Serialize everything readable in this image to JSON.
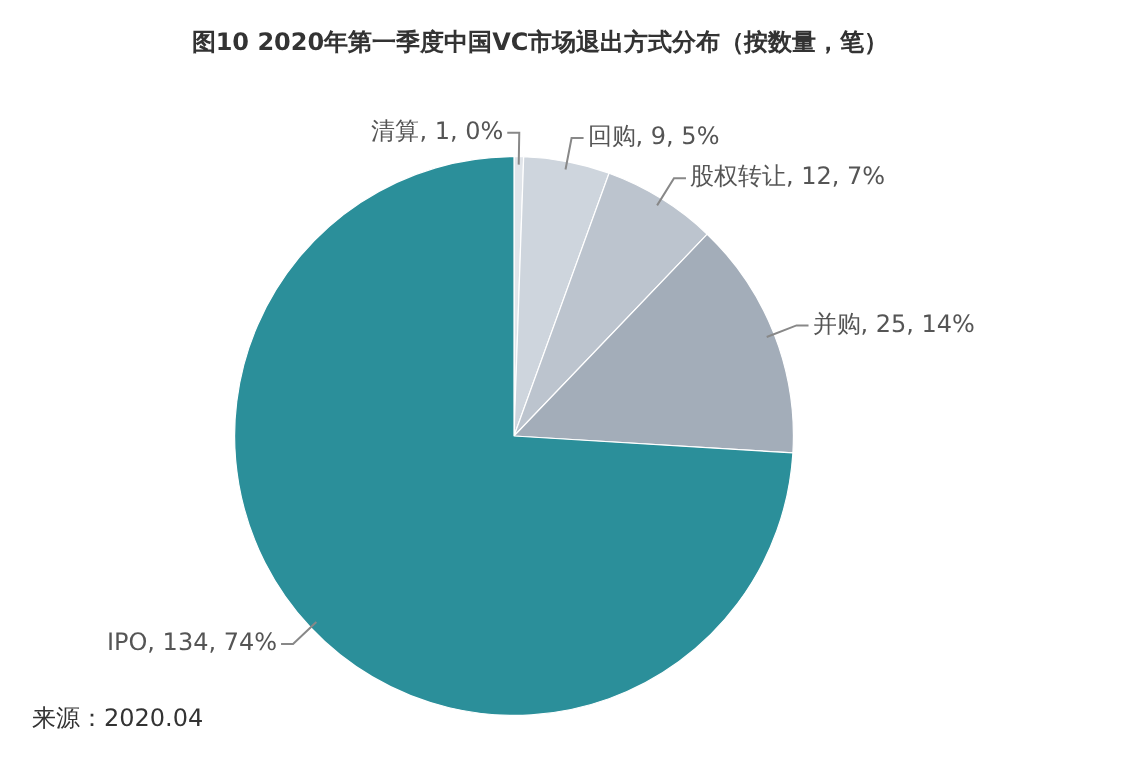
{
  "chart_data": {
    "type": "pie",
    "title": "图10 2020年第一季度中国VC市场退出方式分布（按数量，笔）",
    "categories": [
      "清算",
      "回购",
      "股权转让",
      "并购",
      "IPO"
    ],
    "values": [
      1,
      9,
      12,
      25,
      134
    ],
    "value_labels": [
      "1, 0%",
      "9, 5%",
      "12, 7%",
      "25, 14%",
      "134, 74%"
    ],
    "colors": [
      "#e1e5ea",
      "#ced5dd",
      "#bcc4ce",
      "#a3adb9",
      "#2b8f9a"
    ],
    "legend": false,
    "annotations": [
      "来源：2020.04"
    ]
  }
}
